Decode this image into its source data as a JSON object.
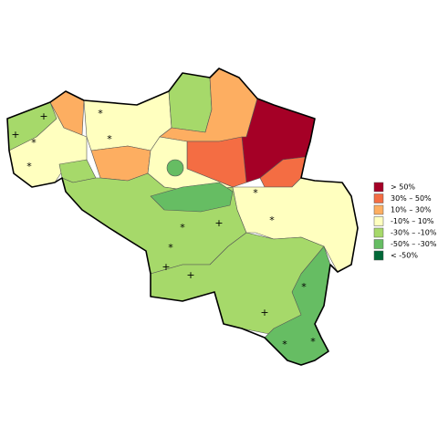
{
  "legend": [
    {
      "label": "> 50%",
      "color": "#a50026"
    },
    {
      "label": "30%  –  50%",
      "color": "#f46d43"
    },
    {
      "label": "10%  –  30%",
      "color": "#fdae61"
    },
    {
      "label": "-10%  –  10%",
      "color": "#ffffbf"
    },
    {
      "label": "-30%  – -10%",
      "color": "#a6d96a"
    },
    {
      "label": "-50%  – -30%",
      "color": "#66bd63"
    },
    {
      "label": "< -50%",
      "color": "#006837"
    }
  ],
  "markers": [
    "+",
    "+",
    "*",
    "*",
    "*",
    "*",
    "*",
    "*",
    "+",
    "*",
    "+",
    "+",
    "*",
    "+",
    "*",
    "*",
    "*"
  ]
}
